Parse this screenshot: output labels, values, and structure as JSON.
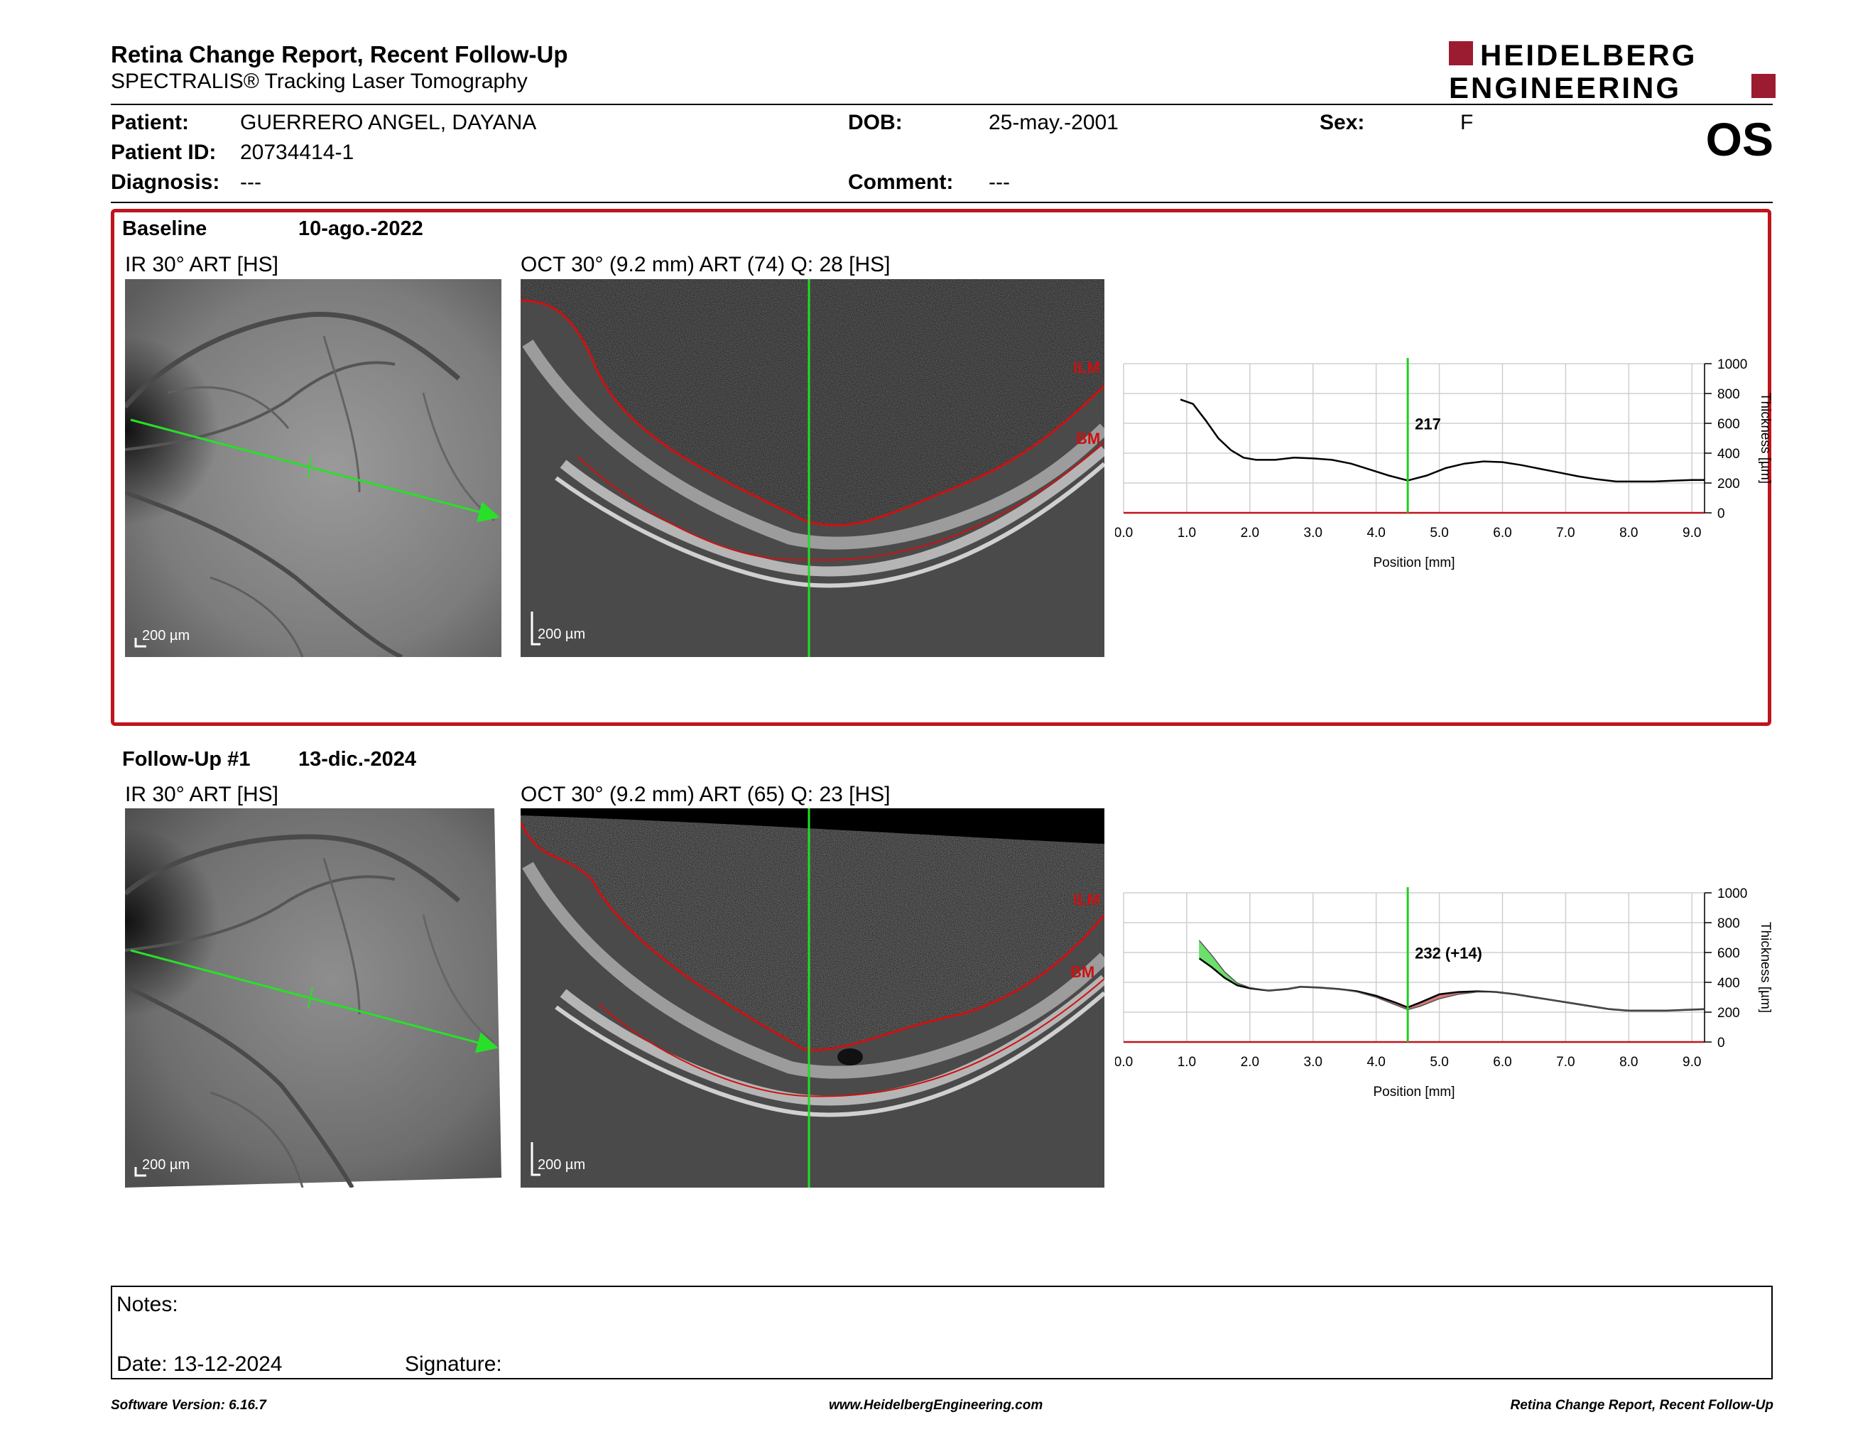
{
  "header": {
    "title": "Retina Change Report, Recent Follow-Up",
    "subtitle": "SPECTRALIS® Tracking Laser Tomography",
    "logo_line1": "HEIDELBERG",
    "logo_line2": "ENGINEERING",
    "eye": "OS"
  },
  "patient": {
    "patient_label": "Patient:",
    "patient_value": "GUERRERO ANGEL, DAYANA",
    "dob_label": "DOB:",
    "dob_value": "25-may.-2001",
    "sex_label": "Sex:",
    "sex_value": "F",
    "id_label": "Patient ID:",
    "id_value": "20734414-1",
    "diagnosis_label": "Diagnosis:",
    "diagnosis_value": "---",
    "comment_label": "Comment:",
    "comment_value": "---"
  },
  "sections": [
    {
      "name": "Baseline",
      "date": "10-ago.-2022",
      "ir_caption": "IR 30° ART [HS]",
      "oct_caption": "OCT 30° (9.2 mm) ART (74) Q: 28 [HS]",
      "scale_label": "200 µm",
      "ilm_label": "ILM",
      "bm_label": "BM",
      "cursor_value": "217"
    },
    {
      "name": "Follow-Up #1",
      "date": "13-dic.-2024",
      "ir_caption": "IR 30° ART [HS]",
      "oct_caption": "OCT 30° (9.2 mm) ART (65) Q: 23 [HS]",
      "scale_label": "200 µm",
      "ilm_label": "ILM",
      "bm_label": "BM",
      "cursor_value": "232 (+14)"
    }
  ],
  "chart_data": [
    {
      "type": "line",
      "xlabel": "Position [mm]",
      "ylabel": "Thickness [µm]",
      "xlim": [
        0,
        9.2
      ],
      "ylim": [
        0,
        1000
      ],
      "xticks": [
        "0.0",
        "1.0",
        "2.0",
        "3.0",
        "4.0",
        "5.0",
        "6.0",
        "7.0",
        "8.0",
        "9.0"
      ],
      "yticks": [
        "0",
        "200",
        "400",
        "600",
        "800",
        "1000"
      ],
      "grid": true,
      "cursor_x": 4.5,
      "series": [
        {
          "values_x": [
            0.9,
            1.1,
            1.3,
            1.5,
            1.7,
            1.9,
            2.1,
            2.4,
            2.7,
            3.0,
            3.3,
            3.6,
            3.9,
            4.2,
            4.5,
            4.8,
            5.1,
            5.4,
            5.7,
            6.0,
            6.3,
            6.6,
            6.9,
            7.2,
            7.5,
            7.8,
            8.1,
            8.4,
            8.7,
            9.0,
            9.2
          ],
          "values_y": [
            760,
            730,
            620,
            500,
            420,
            370,
            355,
            355,
            370,
            365,
            355,
            330,
            290,
            250,
            217,
            250,
            300,
            330,
            345,
            340,
            320,
            295,
            270,
            245,
            225,
            210,
            210,
            210,
            215,
            220,
            220
          ]
        }
      ]
    },
    {
      "type": "line",
      "xlabel": "Position [mm]",
      "ylabel": "Thickness [µm]",
      "xlim": [
        0,
        9.2
      ],
      "ylim": [
        0,
        1000
      ],
      "xticks": [
        "0.0",
        "1.0",
        "2.0",
        "3.0",
        "4.0",
        "5.0",
        "6.0",
        "7.0",
        "8.0",
        "9.0"
      ],
      "yticks": [
        "0",
        "200",
        "400",
        "600",
        "800",
        "1000"
      ],
      "grid": true,
      "cursor_x": 4.5,
      "series": [
        {
          "values_x": [
            1.2,
            1.4,
            1.6,
            1.8,
            2.0,
            2.3,
            2.6,
            2.8,
            3.1,
            3.4,
            3.7,
            4.0,
            4.3,
            4.5,
            4.7,
            5.0,
            5.3,
            5.6,
            5.9,
            6.2,
            6.5,
            6.8,
            7.1,
            7.4,
            7.7,
            8.0,
            8.3,
            8.6,
            8.9,
            9.2
          ],
          "values_y": [
            560,
            500,
            430,
            380,
            360,
            345,
            355,
            370,
            365,
            355,
            340,
            310,
            265,
            232,
            265,
            320,
            335,
            340,
            335,
            320,
            300,
            280,
            260,
            240,
            220,
            210,
            210,
            210,
            215,
            220
          ]
        },
        {
          "values_x": [
            1.2,
            1.4,
            1.6,
            1.8,
            2.0,
            2.3,
            2.6,
            2.8,
            3.1,
            3.4,
            3.7,
            4.0,
            4.3,
            4.5,
            4.7,
            5.0,
            5.3,
            5.6,
            5.9,
            6.2,
            6.5,
            6.8,
            7.1,
            7.4,
            7.7,
            8.0,
            8.3,
            8.6,
            8.9,
            9.2
          ],
          "values_y": [
            680,
            580,
            470,
            395,
            365,
            345,
            355,
            370,
            365,
            355,
            335,
            300,
            250,
            217,
            240,
            290,
            320,
            335,
            335,
            320,
            300,
            280,
            260,
            240,
            220,
            210,
            210,
            210,
            215,
            220
          ]
        }
      ]
    }
  ],
  "notes": {
    "notes_label": "Notes:",
    "date_label": "Date: 13-12-2024",
    "signature_label": "Signature:"
  },
  "footer": {
    "left": "Software Version: 6.16.7",
    "center": "www.HeidelbergEngineering.com",
    "right": "Retina Change Report, Recent Follow-Up"
  },
  "colors": {
    "accent_red": "#c0141c",
    "logo_red": "#9b1b30",
    "cursor_green": "#22cc22",
    "curve_red": "#d01010",
    "gain_green": "#6ddf6d",
    "loss_red": "#d47a7a"
  }
}
